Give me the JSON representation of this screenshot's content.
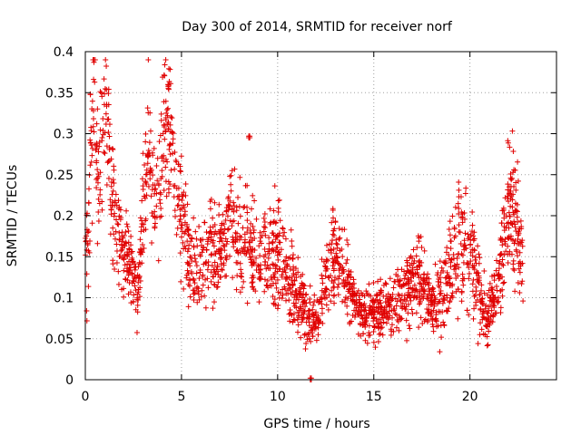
{
  "chart_data": {
    "type": "scatter",
    "title": "Day 300 of 2014, SRMTID for receiver norf",
    "xlabel": "GPS time / hours",
    "ylabel": "SRMTID / TECUs",
    "xlim": [
      0,
      24.5
    ],
    "ylim": [
      0,
      0.4
    ],
    "grid": true,
    "marker": "+",
    "color": "#e00000",
    "x_ticks": [
      {
        "value": 0,
        "label": "0"
      },
      {
        "value": 5,
        "label": "5"
      },
      {
        "value": 10,
        "label": "10"
      },
      {
        "value": 15,
        "label": "15"
      },
      {
        "value": 20,
        "label": "20"
      }
    ],
    "y_ticks": [
      {
        "value": 0,
        "label": "0"
      },
      {
        "value": 0.05,
        "label": "0.05"
      },
      {
        "value": 0.1,
        "label": "0.1"
      },
      {
        "value": 0.15,
        "label": "0.15"
      },
      {
        "value": 0.2,
        "label": "0.2"
      },
      {
        "value": 0.25,
        "label": "0.25"
      },
      {
        "value": 0.3,
        "label": "0.3"
      },
      {
        "value": 0.35,
        "label": "0.35"
      },
      {
        "value": 0.4,
        "label": "0.4"
      }
    ],
    "envelope": [
      [
        0.0,
        0.13,
        0.05
      ],
      [
        0.2,
        0.22,
        0.07
      ],
      [
        0.45,
        0.34,
        0.06
      ],
      [
        0.7,
        0.24,
        0.05
      ],
      [
        1.0,
        0.35,
        0.06
      ],
      [
        1.3,
        0.25,
        0.05
      ],
      [
        1.6,
        0.19,
        0.04
      ],
      [
        2.0,
        0.15,
        0.03
      ],
      [
        2.5,
        0.13,
        0.03
      ],
      [
        2.7,
        0.09,
        0.02
      ],
      [
        3.0,
        0.21,
        0.04
      ],
      [
        3.3,
        0.3,
        0.05
      ],
      [
        3.6,
        0.21,
        0.04
      ],
      [
        3.9,
        0.25,
        0.05
      ],
      [
        4.3,
        0.33,
        0.05
      ],
      [
        4.7,
        0.24,
        0.04
      ],
      [
        5.0,
        0.2,
        0.04
      ],
      [
        5.5,
        0.14,
        0.03
      ],
      [
        6.0,
        0.14,
        0.03
      ],
      [
        6.5,
        0.15,
        0.04
      ],
      [
        7.0,
        0.15,
        0.03
      ],
      [
        7.5,
        0.21,
        0.04
      ],
      [
        8.0,
        0.17,
        0.04
      ],
      [
        8.5,
        0.17,
        0.04
      ],
      [
        9.0,
        0.14,
        0.03
      ],
      [
        9.5,
        0.16,
        0.04
      ],
      [
        10.0,
        0.15,
        0.04
      ],
      [
        10.5,
        0.13,
        0.03
      ],
      [
        11.0,
        0.1,
        0.03
      ],
      [
        11.5,
        0.08,
        0.02
      ],
      [
        12.0,
        0.07,
        0.02
      ],
      [
        12.5,
        0.12,
        0.03
      ],
      [
        13.0,
        0.15,
        0.04
      ],
      [
        13.5,
        0.13,
        0.03
      ],
      [
        14.0,
        0.1,
        0.02
      ],
      [
        14.5,
        0.08,
        0.02
      ],
      [
        15.0,
        0.08,
        0.02
      ],
      [
        15.5,
        0.09,
        0.02
      ],
      [
        16.0,
        0.09,
        0.02
      ],
      [
        16.5,
        0.11,
        0.03
      ],
      [
        17.0,
        0.12,
        0.03
      ],
      [
        17.5,
        0.12,
        0.03
      ],
      [
        18.0,
        0.09,
        0.02
      ],
      [
        18.5,
        0.1,
        0.03
      ],
      [
        19.0,
        0.13,
        0.04
      ],
      [
        19.5,
        0.17,
        0.05
      ],
      [
        20.0,
        0.15,
        0.04
      ],
      [
        20.5,
        0.1,
        0.03
      ],
      [
        21.0,
        0.08,
        0.02
      ],
      [
        21.5,
        0.12,
        0.03
      ],
      [
        22.0,
        0.21,
        0.05
      ],
      [
        22.4,
        0.2,
        0.05
      ],
      [
        22.8,
        0.12,
        0.03
      ]
    ],
    "highlight_points": [
      {
        "x": 8.5,
        "y": 0.295
      },
      {
        "x": 11.7,
        "y": 0.0
      }
    ]
  }
}
